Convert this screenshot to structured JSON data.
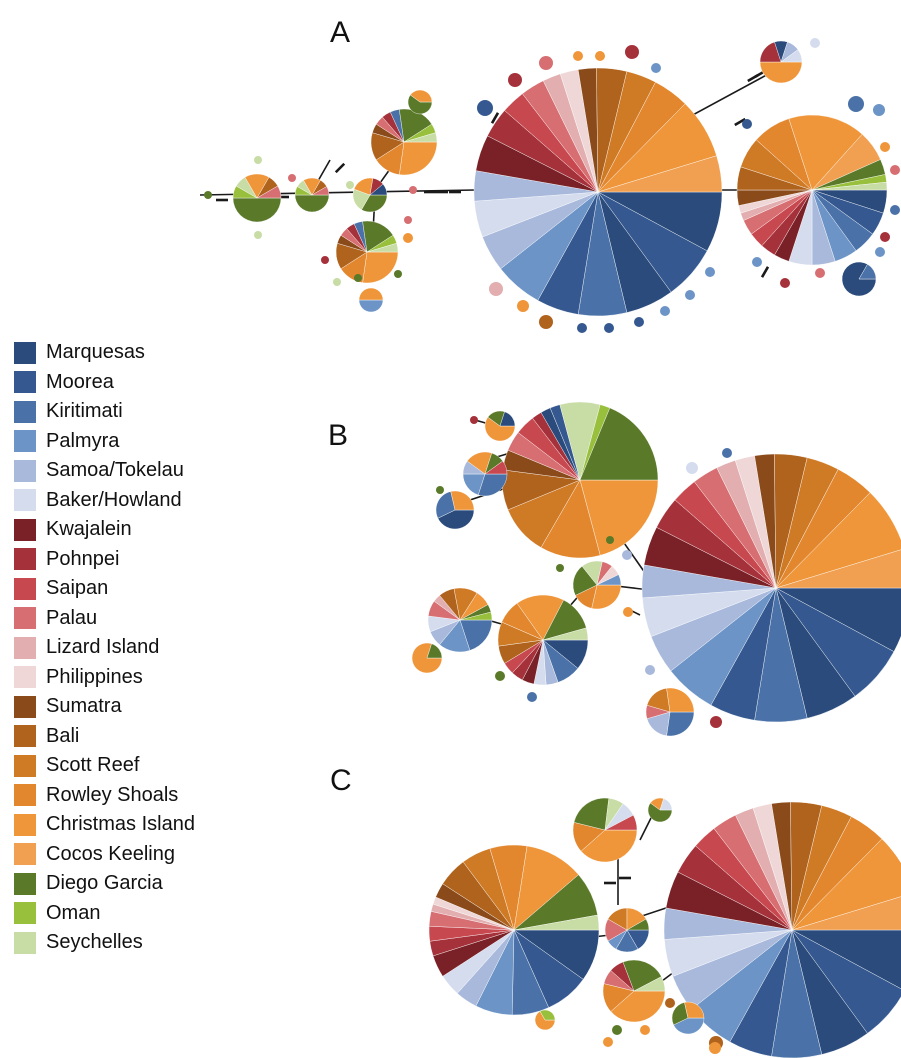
{
  "panels": [
    "A",
    "B",
    "C"
  ],
  "legend": [
    {
      "label": "Marquesas",
      "color": "#2a4b7c"
    },
    {
      "label": "Moorea",
      "color": "#34588f"
    },
    {
      "label": "Kiritimati",
      "color": "#4a72a8"
    },
    {
      "label": "Palmyra",
      "color": "#6c94c6"
    },
    {
      "label": "Samoa/Tokelau",
      "color": "#a9b9dc"
    },
    {
      "label": "Baker/Howland",
      "color": "#d4dcee"
    },
    {
      "label": "Kwajalein",
      "color": "#7a2127"
    },
    {
      "label": "Pohnpei",
      "color": "#a5313a"
    },
    {
      "label": "Saipan",
      "color": "#c8484f"
    },
    {
      "label": "Palau",
      "color": "#d76f72"
    },
    {
      "label": "Lizard Island",
      "color": "#e2aeb0"
    },
    {
      "label": "Philippines",
      "color": "#f0d7d7"
    },
    {
      "label": "Sumatra",
      "color": "#8a4a1a"
    },
    {
      "label": "Bali",
      "color": "#b0631d"
    },
    {
      "label": "Scott Reef",
      "color": "#cf7a25"
    },
    {
      "label": "Rowley Shoals",
      "color": "#e3872f"
    },
    {
      "label": "Christmas Island",
      "color": "#f0963a"
    },
    {
      "label": "Cocos Keeling",
      "color": "#f0a050"
    },
    {
      "label": "Diego Garcia",
      "color": "#5a7a2a"
    },
    {
      "label": "Oman",
      "color": "#98c03c"
    },
    {
      "label": "Seychelles",
      "color": "#c8dca5"
    }
  ]
}
